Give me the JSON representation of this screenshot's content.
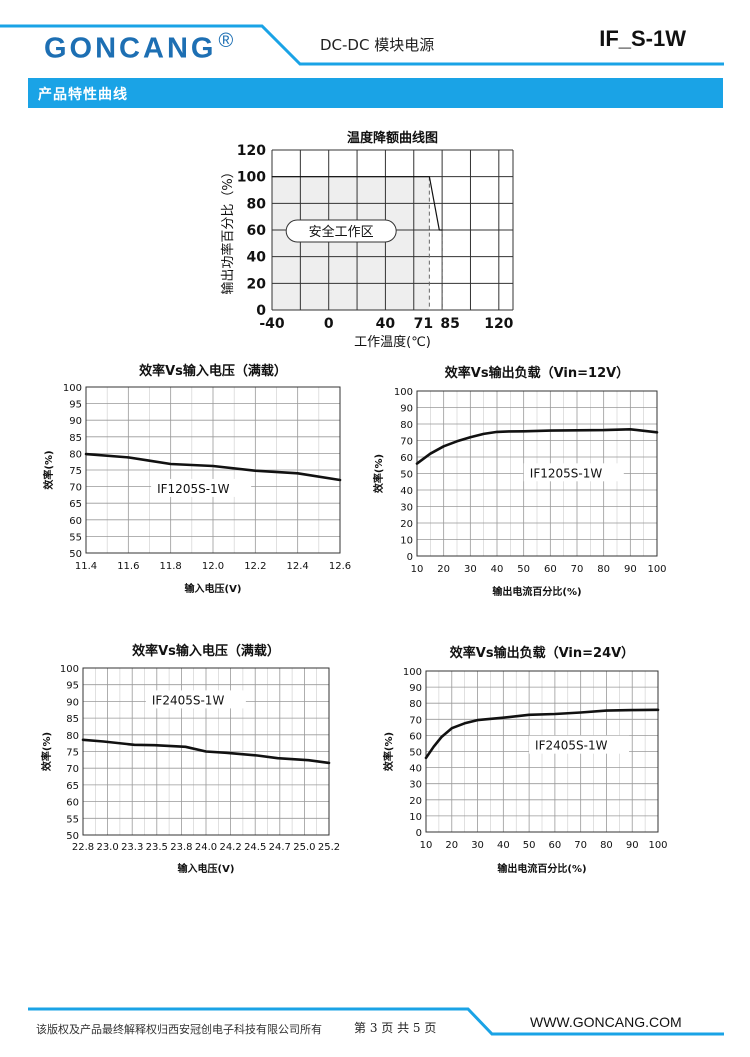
{
  "header": {
    "brand": "GONCANG",
    "registered": "®",
    "subtitle": "DC-DC  模块电源",
    "model": "IF_S-1W",
    "accent_color": "#1d6fb3"
  },
  "section": {
    "title": "产品特性曲线",
    "color": "#1aa3e6"
  },
  "footer": {
    "copyright": "该版权及产品最终解释权归西安冠创电子科技有限公司所有",
    "page": "第 3 页  共 5 页",
    "website": "WWW.GONCANG.COM"
  },
  "chart_data": [
    {
      "id": "derating",
      "type": "line",
      "title": "温度降额曲线图",
      "xlabel": "工作温度(℃)",
      "ylabel": "输出功率百分比（%）",
      "x_ticks": [
        "-40",
        "0",
        "40",
        "71",
        "85",
        "120"
      ],
      "y_ticks": [
        "0",
        "20",
        "40",
        "60",
        "80",
        "100",
        "120"
      ],
      "xlim": [
        -40,
        130
      ],
      "ylim": [
        0,
        120
      ],
      "grid": true,
      "annotation": "安全工作区",
      "series": [
        {
          "x": [
            -40,
            71,
            78,
            80
          ],
          "y": [
            100,
            100,
            60,
            60
          ]
        }
      ]
    },
    {
      "id": "eff-vin-12",
      "type": "line",
      "title": "效率Vs输入电压（满载）",
      "xlabel": "输入电压(V)",
      "ylabel": "效率(%)",
      "x_ticks": [
        "11.4",
        "11.6",
        "11.8",
        "12.0",
        "12.2",
        "12.4",
        "12.6"
      ],
      "y_ticks": [
        "50",
        "55",
        "60",
        "65",
        "70",
        "75",
        "80",
        "85",
        "90",
        "95",
        "100"
      ],
      "xlim": [
        11.4,
        12.6
      ],
      "ylim": [
        50,
        100
      ],
      "grid": true,
      "label": "IF1205S-1W",
      "series": [
        {
          "x": [
            11.4,
            11.6,
            11.7,
            11.8,
            12.0,
            12.2,
            12.4,
            12.6
          ],
          "y": [
            79.8,
            78.8,
            77.8,
            76.8,
            76.2,
            74.8,
            74.0,
            72.0
          ]
        }
      ]
    },
    {
      "id": "eff-load-12",
      "type": "line",
      "title": "效率Vs输出负载（Vin=12V）",
      "xlabel": "输出电流百分比(%)",
      "ylabel": "效率(%)",
      "x_ticks": [
        "10",
        "20",
        "30",
        "40",
        "50",
        "60",
        "70",
        "80",
        "90",
        "100"
      ],
      "y_ticks": [
        "0",
        "10",
        "20",
        "30",
        "40",
        "50",
        "60",
        "70",
        "80",
        "90",
        "100"
      ],
      "xlim": [
        10,
        100
      ],
      "ylim": [
        0,
        100
      ],
      "grid": true,
      "label": "IF1205S-1W",
      "series": [
        {
          "x": [
            10,
            15,
            20,
            25,
            30,
            35,
            40,
            45,
            50,
            60,
            70,
            80,
            90,
            100
          ],
          "y": [
            56,
            62,
            66.5,
            69.5,
            72,
            74,
            75.2,
            75.5,
            75.6,
            76,
            76.2,
            76.3,
            76.8,
            75
          ]
        }
      ]
    },
    {
      "id": "eff-vin-24",
      "type": "line",
      "title": "效率Vs输入电压（满载）",
      "xlabel": "输入电压(V)",
      "ylabel": "效率(%)",
      "x_ticks": [
        "22.8",
        "23.0",
        "23.3",
        "23.5",
        "23.8",
        "24.0",
        "24.2",
        "24.5",
        "24.7",
        "25.0",
        "25.2"
      ],
      "y_ticks": [
        "50",
        "55",
        "60",
        "65",
        "70",
        "75",
        "80",
        "85",
        "90",
        "95",
        "100"
      ],
      "xlim": [
        22.8,
        25.2
      ],
      "ylim": [
        50,
        100
      ],
      "grid": true,
      "label": "IF2405S-1W",
      "series": [
        {
          "x": [
            22.8,
            23.0,
            23.3,
            23.5,
            23.8,
            24.0,
            24.2,
            24.5,
            24.7,
            25.0,
            25.2
          ],
          "y": [
            78.5,
            78.0,
            77.0,
            76.9,
            76.4,
            75.0,
            74.6,
            73.8,
            73.0,
            72.4,
            71.6
          ]
        }
      ]
    },
    {
      "id": "eff-load-24",
      "type": "line",
      "title": "效率Vs输出负载（Vin=24V）",
      "xlabel": "输出电流百分比(%)",
      "ylabel": "效率(%)",
      "x_ticks": [
        "10",
        "20",
        "30",
        "40",
        "50",
        "60",
        "70",
        "80",
        "90",
        "100"
      ],
      "y_ticks": [
        "0",
        "10",
        "20",
        "30",
        "40",
        "50",
        "60",
        "70",
        "80",
        "90",
        "100"
      ],
      "xlim": [
        10,
        100
      ],
      "ylim": [
        0,
        100
      ],
      "grid": true,
      "label": "IF2405S-1W",
      "series": [
        {
          "x": [
            10,
            13,
            16,
            20,
            25,
            30,
            40,
            50,
            60,
            70,
            80,
            90,
            100
          ],
          "y": [
            46,
            53,
            59,
            64.5,
            67.5,
            69.5,
            71,
            72.8,
            73.3,
            74.2,
            75.4,
            75.7,
            75.9
          ]
        }
      ]
    }
  ]
}
